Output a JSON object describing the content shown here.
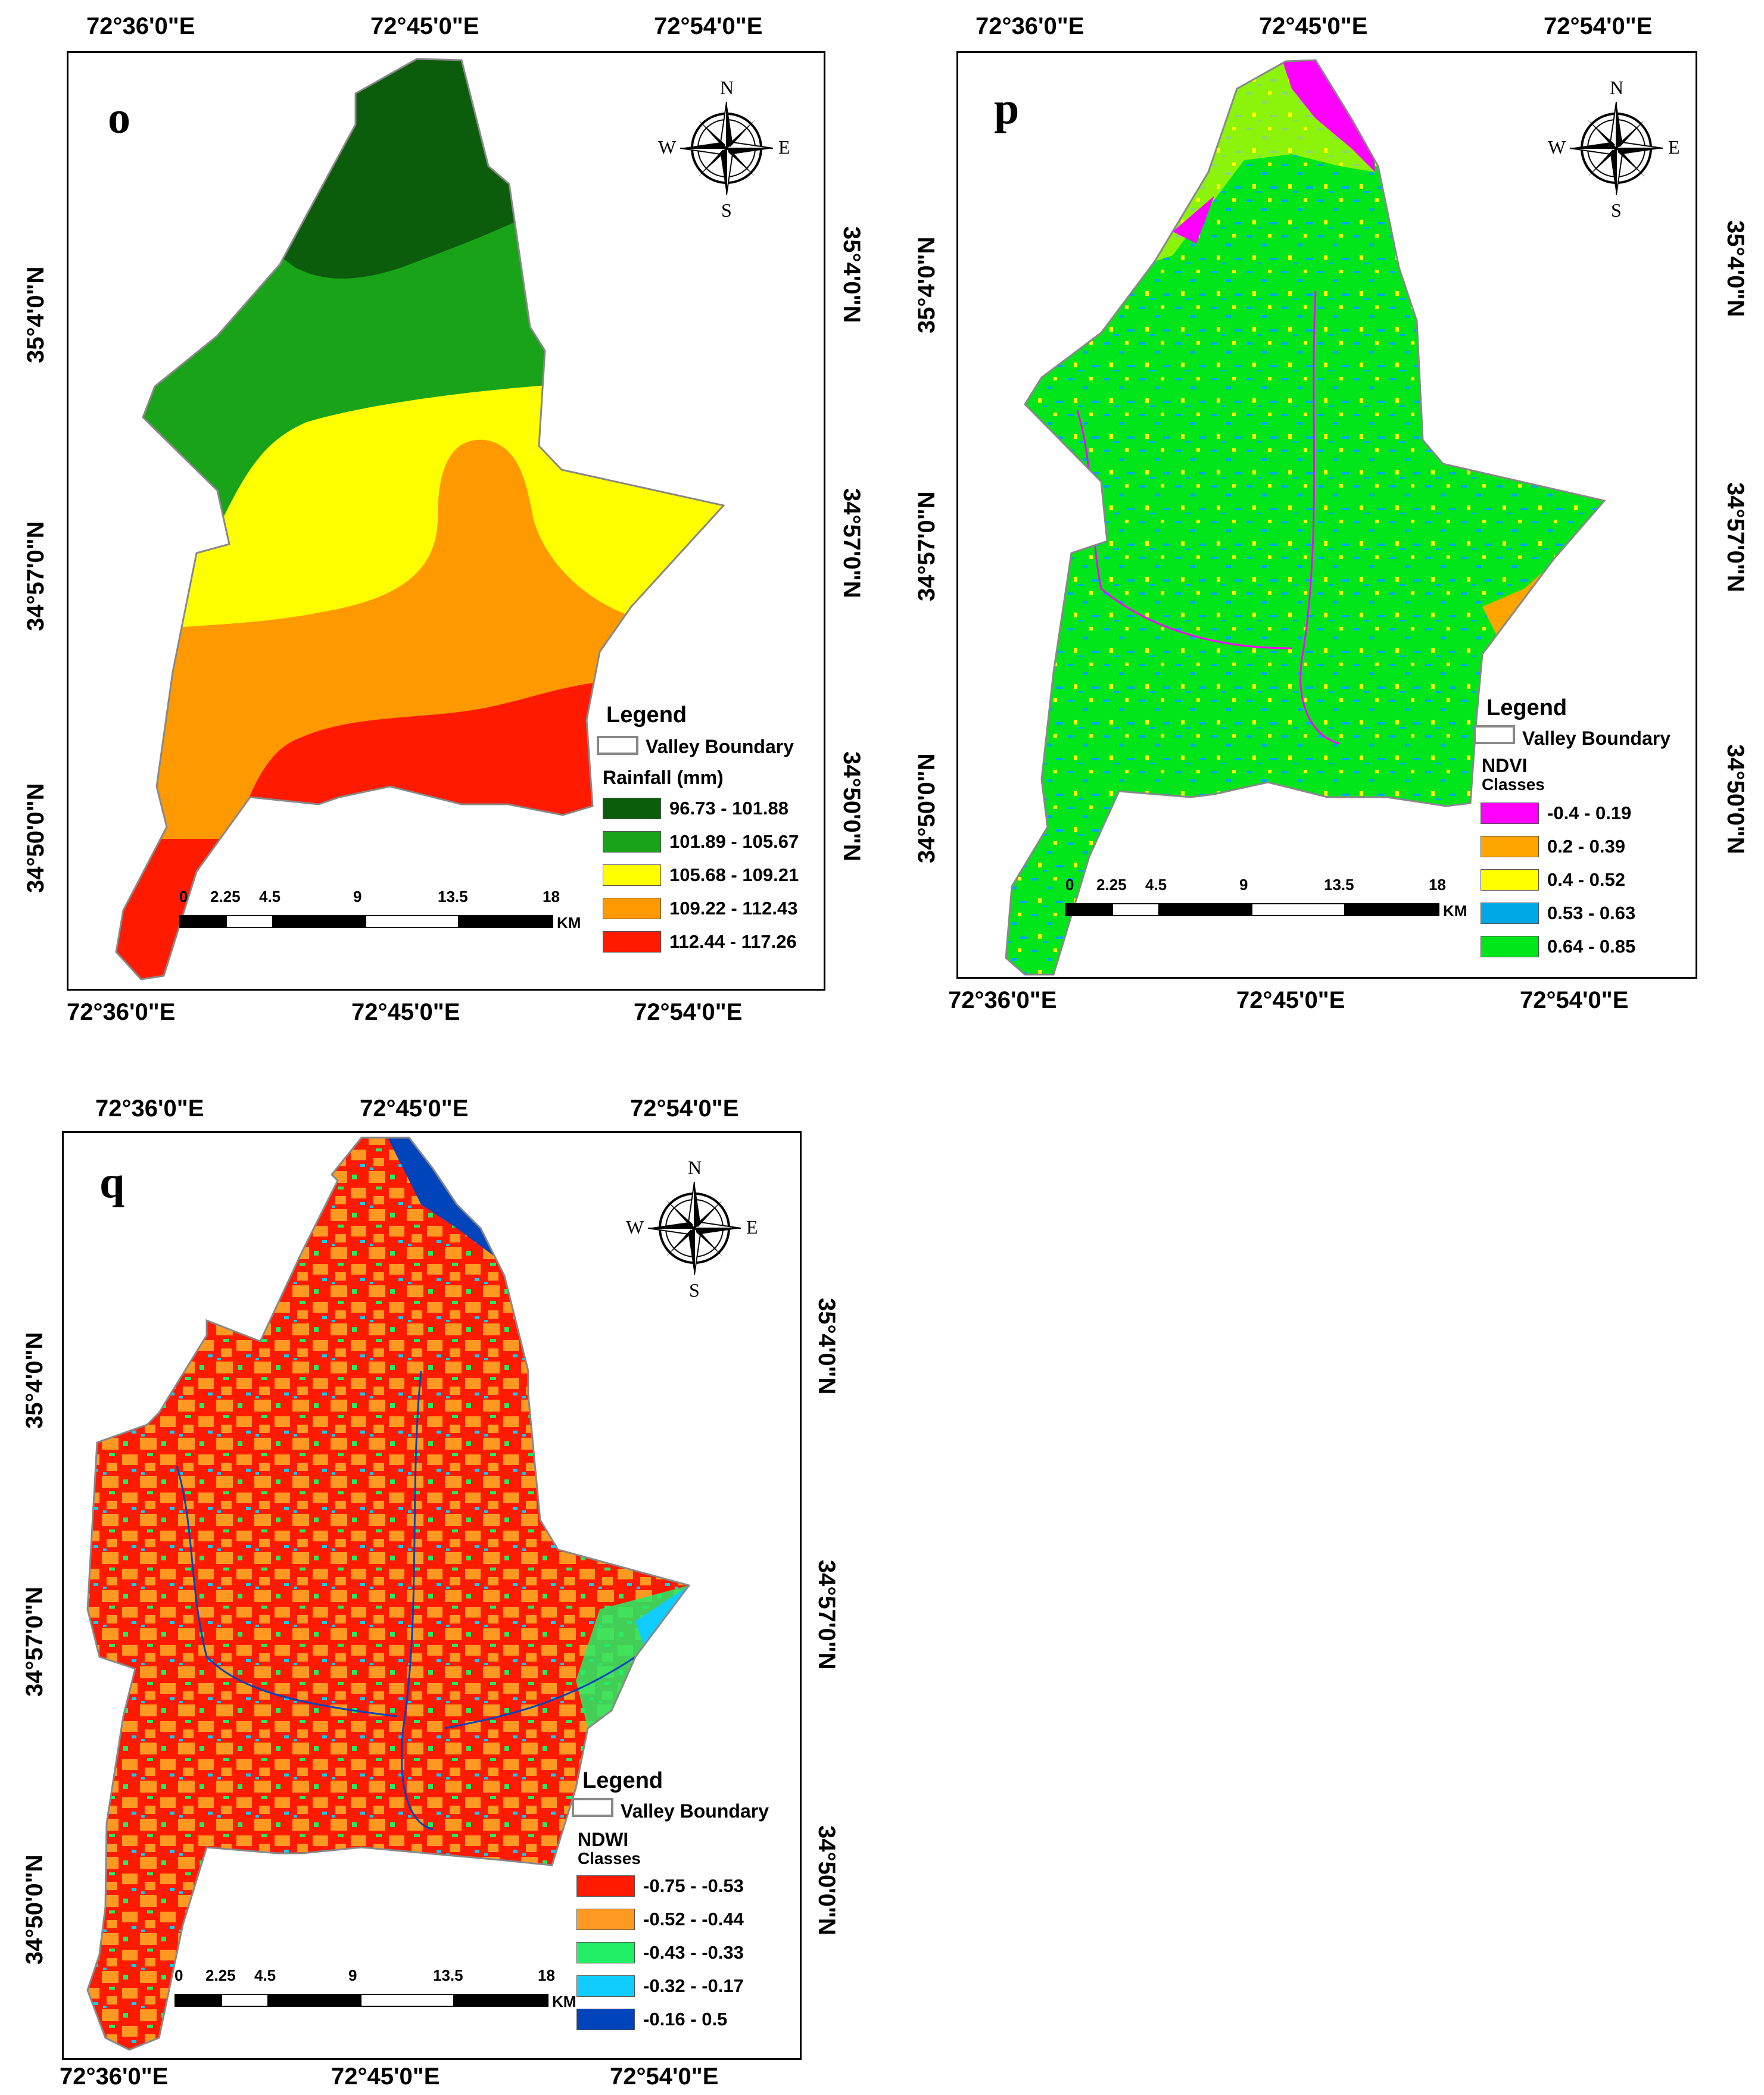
{
  "panels": [
    {
      "label": "o",
      "top_lon": [
        "72°36'0\"E",
        "72°45'0\"E",
        "72°54'0\"E"
      ],
      "bottom_lon": [
        "72°36'0\"E",
        "72°45'0\"E",
        "72°54'0\"E"
      ],
      "left_lat": [
        "35°4'0\"N",
        "34°57'0\"N",
        "34°50'0\"N"
      ],
      "right_lat": [
        "35°4'0\"N",
        "34°57'0\"N",
        "34°50'0\"N"
      ],
      "compass": {
        "n": "N",
        "s": "S",
        "e": "E",
        "w": "W",
        "icon": "compass-rose-icon"
      },
      "legend": {
        "title": "Legend",
        "boundary_label": "Valley Boundary",
        "subtitle": "Rainfall (mm)",
        "subtitle2": "",
        "classes": [
          {
            "label": "96.73 - 101.88",
            "color": "#0b5c0b"
          },
          {
            "label": "101.89 - 105.67",
            "color": "#19a319"
          },
          {
            "label": "105.68 - 109.21",
            "color": "#ffff00"
          },
          {
            "label": "109.22 - 112.43",
            "color": "#ff9900"
          },
          {
            "label": "112.44 - 117.26",
            "color": "#ff1a00"
          }
        ]
      },
      "scale": {
        "ticks": [
          "0",
          "2.25",
          "4.5",
          "9",
          "13.5",
          "18"
        ],
        "unit": "KM"
      }
    },
    {
      "label": "p",
      "top_lon": [
        "72°36'0\"E",
        "72°45'0\"E",
        "72°54'0\"E"
      ],
      "bottom_lon": [
        "72°36'0\"E",
        "72°45'0\"E",
        "72°54'0\"E"
      ],
      "left_lat": [
        "35°4'0\"N",
        "34°57'0\"N",
        "34°50'0\"N"
      ],
      "right_lat": [
        "35°4'0\"N",
        "34°57'0\"N",
        "34°50'0\"N"
      ],
      "compass": {
        "n": "N",
        "s": "S",
        "e": "E",
        "w": "W",
        "icon": "compass-rose-icon"
      },
      "legend": {
        "title": "Legend",
        "boundary_label": "Valley Boundary",
        "subtitle": "NDVI",
        "subtitle2": "Classes",
        "classes": [
          {
            "label": "-0.4 - 0.19",
            "color": "#ff00ff"
          },
          {
            "label": "0.2 - 0.39",
            "color": "#ffa500"
          },
          {
            "label": "0.4 - 0.52",
            "color": "#ffff00"
          },
          {
            "label": "0.53 - 0.63",
            "color": "#00a8e6"
          },
          {
            "label": "0.64 - 0.85",
            "color": "#00e61a"
          }
        ]
      },
      "scale": {
        "ticks": [
          "0",
          "2.25",
          "4.5",
          "9",
          "13.5",
          "18"
        ],
        "unit": "KM"
      }
    },
    {
      "label": "q",
      "top_lon": [
        "72°36'0\"E",
        "72°45'0\"E",
        "72°54'0\"E"
      ],
      "bottom_lon": [
        "72°36'0\"E",
        "72°45'0\"E",
        "72°54'0\"E"
      ],
      "left_lat": [
        "35°4'0\"N",
        "34°57'0\"N",
        "34°50'0\"N"
      ],
      "right_lat": [
        "35°4'0\"N",
        "34°57'0\"N",
        "34°50'0\"N"
      ],
      "compass": {
        "n": "N",
        "s": "S",
        "e": "E",
        "w": "W",
        "icon": "compass-rose-icon"
      },
      "legend": {
        "title": "Legend",
        "boundary_label": "Valley Boundary",
        "subtitle": "NDWI",
        "subtitle2": "Classes",
        "classes": [
          {
            "label": "-0.75 - -0.53",
            "color": "#ff1a00"
          },
          {
            "label": "-0.52 - -0.44",
            "color": "#ff9922"
          },
          {
            "label": "-0.43 - -0.33",
            "color": "#22ee66"
          },
          {
            "label": "-0.32 - -0.17",
            "color": "#11ccff"
          },
          {
            "label": "-0.16 - 0.5",
            "color": "#0044bb"
          }
        ]
      },
      "scale": {
        "ticks": [
          "0",
          "2.25",
          "4.5",
          "9",
          "13.5",
          "18"
        ],
        "unit": "KM"
      }
    }
  ]
}
